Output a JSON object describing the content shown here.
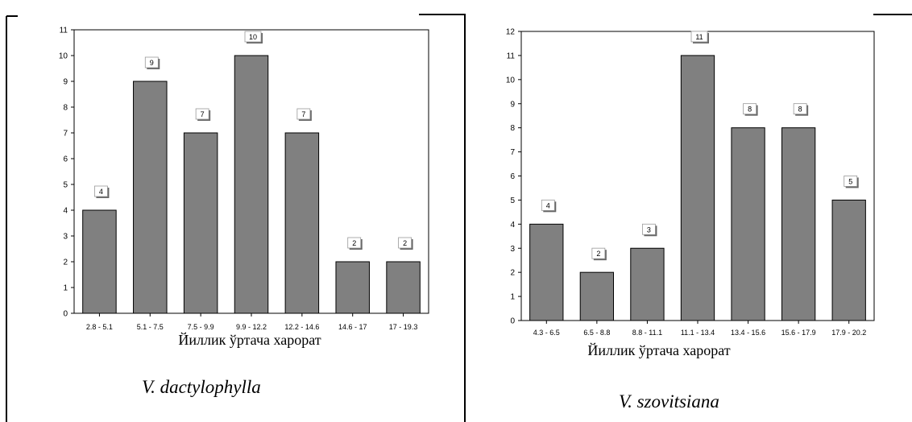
{
  "panels": [
    {
      "species": "V. dactylophylla"
    },
    {
      "species": "V. szovitsiana"
    }
  ],
  "chart_data": [
    {
      "type": "bar",
      "categories": [
        "2.8 - 5.1",
        "5.1 - 7.5",
        "7.5 - 9.9",
        "9.9 - 12.2",
        "12.2 - 14.6",
        "14.6 - 17",
        "17 - 19.3"
      ],
      "values": [
        4,
        9,
        7,
        10,
        7,
        2,
        2
      ],
      "title": "",
      "xlabel": "Йиллик ўртача харорат",
      "ylabel": "",
      "ylim": [
        0,
        11
      ],
      "yticks": [
        "0",
        "1",
        "2",
        "3",
        "4",
        "5",
        "6",
        "7",
        "8",
        "9",
        "10",
        "11"
      ],
      "data_labels": [
        "4",
        "9",
        "7",
        "10",
        "7",
        "2",
        "2"
      ],
      "grid": false,
      "bar_color": "#808080"
    },
    {
      "type": "bar",
      "categories": [
        "4.3 - 6.5",
        "6.5 - 8.8",
        "8.8 - 11.1",
        "11.1 - 13.4",
        "13.4 - 15.6",
        "15.6 - 17.9",
        "17.9 - 20.2"
      ],
      "values": [
        4,
        2,
        3,
        11,
        8,
        8,
        5
      ],
      "title": "",
      "xlabel": "Йиллик ўртача харорат",
      "ylabel": "",
      "ylim": [
        0,
        12
      ],
      "yticks": [
        "0",
        "1",
        "2",
        "3",
        "4",
        "5",
        "6",
        "7",
        "8",
        "9",
        "10",
        "11",
        "12"
      ],
      "data_labels": [
        "4",
        "2",
        "3",
        "11",
        "8",
        "8",
        "5"
      ],
      "grid": false,
      "bar_color": "#808080"
    }
  ]
}
